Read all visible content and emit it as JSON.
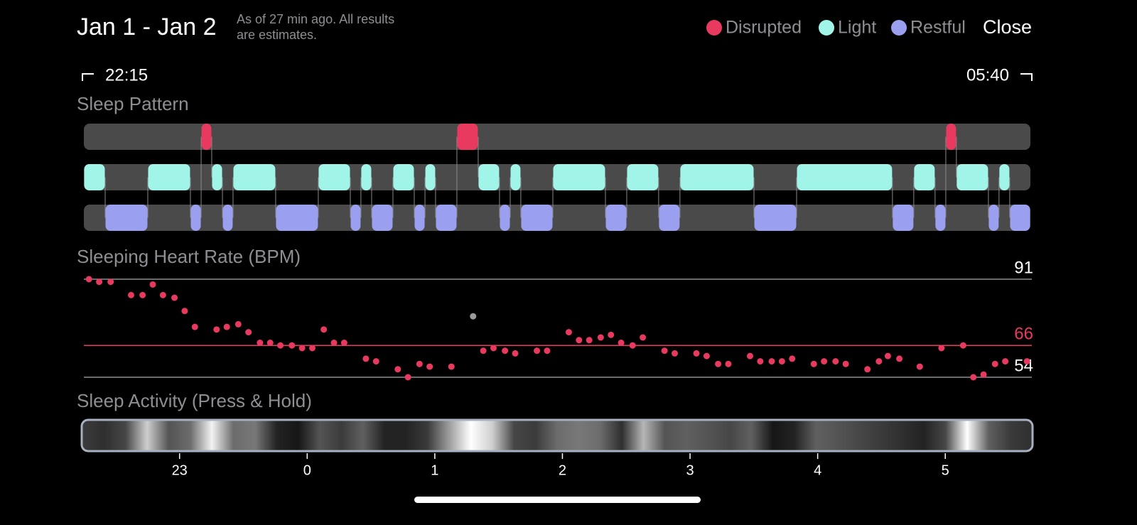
{
  "header": {
    "title": "Jan 1 - Jan 2",
    "subtitle_lines": [
      "As of 27 min ago. All results",
      "are estimates."
    ],
    "close": "Close",
    "range_start": "22:15",
    "range_end": "05:40"
  },
  "chart_data": [
    {
      "type": "timeline",
      "title": "Sleep Pattern",
      "xlim": [
        22.25,
        29.667
      ],
      "series": [
        {
          "name": "Disrupted",
          "color": "#e8395f",
          "segments": [
            [
              23.169,
              23.252
            ],
            [
              25.173,
              25.34
            ],
            [
              29.004,
              29.087
            ]
          ]
        },
        {
          "name": "Light",
          "color": "#a0f5e8",
          "segments": [
            [
              22.25,
              22.417
            ],
            [
              22.751,
              23.085
            ],
            [
              23.252,
              23.336
            ],
            [
              23.419,
              23.753
            ],
            [
              24.087,
              24.338
            ],
            [
              24.421,
              24.505
            ],
            [
              24.672,
              24.839
            ],
            [
              24.923,
              25.006
            ],
            [
              25.34,
              25.507
            ],
            [
              25.591,
              25.674
            ],
            [
              25.925,
              26.337
            ],
            [
              26.504,
              26.754
            ],
            [
              26.921,
              27.501
            ],
            [
              27.835,
              28.586
            ],
            [
              28.753,
              28.92
            ],
            [
              29.087,
              29.338
            ],
            [
              29.421,
              29.505
            ]
          ]
        },
        {
          "name": "Restful",
          "color": "#9a9ff0",
          "segments": [
            [
              22.417,
              22.751
            ],
            [
              23.085,
              23.169
            ],
            [
              23.336,
              23.419
            ],
            [
              23.753,
              24.087
            ],
            [
              24.338,
              24.421
            ],
            [
              24.505,
              24.672
            ],
            [
              24.839,
              24.923
            ],
            [
              25.006,
              25.173
            ],
            [
              25.507,
              25.591
            ],
            [
              25.674,
              25.925
            ],
            [
              26.337,
              26.504
            ],
            [
              26.754,
              26.921
            ],
            [
              27.501,
              27.835
            ],
            [
              28.586,
              28.753
            ],
            [
              28.92,
              29.004
            ],
            [
              29.338,
              29.421
            ],
            [
              29.505,
              29.667
            ]
          ]
        }
      ]
    },
    {
      "type": "scatter",
      "title": "Sleeping Heart Rate (BPM)",
      "xlim": [
        22.25,
        29.667
      ],
      "ylim": [
        54,
        91
      ],
      "yticks": [
        91,
        66,
        54
      ],
      "ytick_label_colors": [
        "#ffffff",
        "#e8395f",
        "#ffffff"
      ],
      "ytick_line_colors": [
        "#8e8e93",
        "#e8395f",
        "#8e8e93"
      ],
      "series": [
        {
          "color": "#e8395f",
          "x": [
            22.29,
            22.37,
            22.46,
            22.62,
            22.71,
            22.79,
            22.87,
            22.96,
            23.04,
            23.12,
            23.29,
            23.37,
            23.46,
            23.54,
            23.63,
            23.71,
            23.79,
            23.88,
            23.96,
            24.04,
            24.13,
            24.21,
            24.29,
            24.46,
            24.54,
            24.71,
            24.79,
            24.88,
            24.96,
            25.13,
            25.38,
            25.46,
            25.55,
            25.63,
            25.8,
            25.88,
            26.05,
            26.13,
            26.21,
            26.3,
            26.38,
            26.46,
            26.55,
            26.63,
            26.8,
            26.88,
            27.05,
            27.13,
            27.22,
            27.3,
            27.47,
            27.55,
            27.64,
            27.72,
            27.8,
            27.97,
            28.05,
            28.14,
            28.22,
            28.39,
            28.48,
            28.55,
            28.64,
            28.8,
            28.97,
            29.14,
            29.22,
            29.3,
            29.39,
            29.47,
            29.64
          ],
          "values": [
            91,
            90,
            90,
            85,
            85,
            89,
            85,
            84,
            79,
            73,
            72,
            73,
            74,
            71,
            67,
            67,
            66,
            66,
            65,
            65,
            72,
            67,
            67,
            61,
            60,
            57,
            54,
            59,
            58,
            58,
            64,
            65,
            64,
            63,
            64,
            64,
            71,
            68,
            68,
            69,
            70,
            67,
            66,
            69,
            64,
            63,
            63,
            62,
            59,
            59,
            62,
            60,
            60,
            60,
            61,
            59,
            60,
            60,
            59,
            57,
            60,
            62,
            61,
            58,
            65,
            66,
            54,
            55,
            59,
            60,
            60
          ]
        },
        {
          "color": "#9a9a9a",
          "x": [
            25.3
          ],
          "values": [
            77
          ]
        }
      ]
    },
    {
      "type": "heatstrip",
      "title": "Sleep Activity (Press & Hold)",
      "xlim": [
        22.25,
        29.667
      ],
      "xticks": [
        {
          "value": 23,
          "label": "23"
        },
        {
          "value": 24,
          "label": "0"
        },
        {
          "value": 25,
          "label": "1"
        },
        {
          "value": 26,
          "label": "2"
        },
        {
          "value": 27,
          "label": "3"
        },
        {
          "value": 28,
          "label": "4"
        },
        {
          "value": 29,
          "label": "5"
        }
      ],
      "values": [
        20,
        15,
        25,
        80,
        30,
        40,
        95,
        40,
        45,
        10,
        5,
        30,
        20,
        35,
        10,
        10,
        20,
        60,
        100,
        80,
        25,
        20,
        40,
        45,
        40,
        15,
        70,
        30,
        35,
        30,
        25,
        35,
        5,
        10,
        35,
        30,
        25,
        20,
        15,
        10,
        25,
        100,
        35,
        20,
        15
      ]
    }
  ]
}
